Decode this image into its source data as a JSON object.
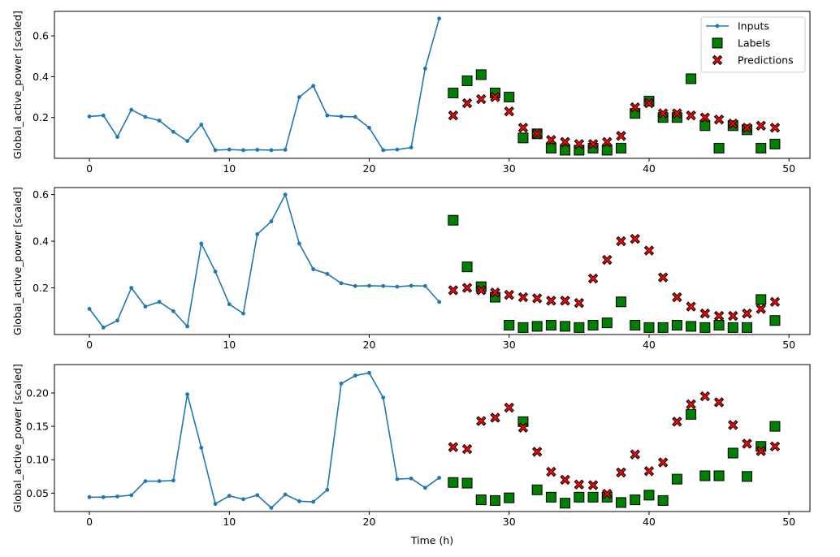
{
  "colors": {
    "inputs": "#1f77b4",
    "labels": "#008000",
    "predictions": "#ff0000",
    "edge": "#000000"
  },
  "legend": {
    "inputs": "Inputs",
    "labels": "Labels",
    "predictions": "Predictions"
  },
  "chart_data": [
    {
      "type": "line",
      "title": "",
      "xlabel": "",
      "ylabel": "Global_active_power [scaled]",
      "xlim": [
        -2.5,
        51.5
      ],
      "ylim": [
        0.0,
        0.72
      ],
      "xticks": [
        0,
        10,
        20,
        30,
        40,
        50
      ],
      "yticks": [
        0.2,
        0.4,
        0.6
      ],
      "ytick_labels": [
        "0.2",
        "0.4",
        "0.6"
      ],
      "legend": "top-right",
      "inputs": {
        "x": [
          0,
          1,
          2,
          3,
          4,
          5,
          6,
          7,
          8,
          9,
          10,
          11,
          12,
          13,
          14,
          15,
          16,
          17,
          18,
          19,
          20,
          21,
          22,
          23,
          24,
          25
        ],
        "y": [
          0.205,
          0.21,
          0.105,
          0.238,
          0.203,
          0.185,
          0.13,
          0.085,
          0.165,
          0.04,
          0.043,
          0.04,
          0.042,
          0.04,
          0.042,
          0.3,
          0.355,
          0.21,
          0.205,
          0.203,
          0.15,
          0.04,
          0.043,
          0.053,
          0.44,
          0.685
        ]
      },
      "labels": {
        "x": [
          26,
          27,
          28,
          29,
          30,
          31,
          32,
          33,
          34,
          35,
          36,
          37,
          38,
          39,
          40,
          41,
          42,
          43,
          44,
          45,
          46,
          47,
          48,
          49
        ],
        "y": [
          0.32,
          0.38,
          0.41,
          0.32,
          0.3,
          0.1,
          0.12,
          0.05,
          0.04,
          0.04,
          0.05,
          0.04,
          0.05,
          0.22,
          0.28,
          0.2,
          0.2,
          0.39,
          0.16,
          0.05,
          0.16,
          0.14,
          0.05,
          0.07
        ]
      },
      "predictions": {
        "x": [
          26,
          27,
          28,
          29,
          30,
          31,
          32,
          33,
          34,
          35,
          36,
          37,
          38,
          39,
          40,
          41,
          42,
          43,
          44,
          45,
          46,
          47,
          48,
          49
        ],
        "y": [
          0.21,
          0.27,
          0.29,
          0.3,
          0.23,
          0.15,
          0.12,
          0.09,
          0.08,
          0.07,
          0.07,
          0.08,
          0.11,
          0.25,
          0.27,
          0.22,
          0.22,
          0.21,
          0.2,
          0.19,
          0.17,
          0.15,
          0.16,
          0.15
        ]
      }
    },
    {
      "type": "line",
      "title": "",
      "xlabel": "",
      "ylabel": "Global_active_power [scaled]",
      "xlim": [
        -2.5,
        51.5
      ],
      "ylim": [
        0.0,
        0.63
      ],
      "xticks": [
        0,
        10,
        20,
        30,
        40,
        50
      ],
      "yticks": [
        0.2,
        0.4,
        0.6
      ],
      "ytick_labels": [
        "0.2",
        "0.4",
        "0.6"
      ],
      "inputs": {
        "x": [
          0,
          1,
          2,
          3,
          4,
          5,
          6,
          7,
          8,
          9,
          10,
          11,
          12,
          13,
          14,
          15,
          16,
          17,
          18,
          19,
          20,
          21,
          22,
          23,
          24,
          25
        ],
        "y": [
          0.11,
          0.03,
          0.06,
          0.2,
          0.12,
          0.14,
          0.1,
          0.035,
          0.39,
          0.27,
          0.13,
          0.09,
          0.43,
          0.485,
          0.6,
          0.39,
          0.28,
          0.26,
          0.22,
          0.208,
          0.209,
          0.208,
          0.205,
          0.209,
          0.208,
          0.14
        ]
      },
      "labels": {
        "x": [
          26,
          27,
          28,
          29,
          30,
          31,
          32,
          33,
          34,
          35,
          36,
          37,
          38,
          39,
          40,
          41,
          42,
          43,
          44,
          45,
          46,
          47,
          48,
          49
        ],
        "y": [
          0.49,
          0.29,
          0.205,
          0.16,
          0.04,
          0.03,
          0.035,
          0.04,
          0.035,
          0.03,
          0.04,
          0.05,
          0.14,
          0.04,
          0.03,
          0.03,
          0.04,
          0.035,
          0.03,
          0.04,
          0.03,
          0.03,
          0.15,
          0.06
        ]
      },
      "predictions": {
        "x": [
          26,
          27,
          28,
          29,
          30,
          31,
          32,
          33,
          34,
          35,
          36,
          37,
          38,
          39,
          40,
          41,
          42,
          43,
          44,
          45,
          46,
          47,
          48,
          49
        ],
        "y": [
          0.19,
          0.2,
          0.19,
          0.18,
          0.17,
          0.16,
          0.155,
          0.145,
          0.145,
          0.135,
          0.24,
          0.32,
          0.4,
          0.41,
          0.36,
          0.245,
          0.16,
          0.12,
          0.09,
          0.08,
          0.08,
          0.09,
          0.11,
          0.14
        ]
      }
    },
    {
      "type": "line",
      "title": "",
      "xlabel": "Time (h)",
      "ylabel": "Global_active_power [scaled]",
      "xlim": [
        -2.5,
        51.5
      ],
      "ylim": [
        0.0225,
        0.2425
      ],
      "xticks": [
        0,
        10,
        20,
        30,
        40,
        50
      ],
      "yticks": [
        0.05,
        0.1,
        0.15,
        0.2
      ],
      "ytick_labels": [
        "0.05",
        "0.10",
        "0.15",
        "0.20"
      ],
      "inputs": {
        "x": [
          0,
          1,
          2,
          3,
          4,
          5,
          6,
          7,
          8,
          9,
          10,
          11,
          12,
          13,
          14,
          15,
          16,
          17,
          18,
          19,
          20,
          21,
          22,
          23,
          24,
          25
        ],
        "y": [
          0.044,
          0.044,
          0.045,
          0.047,
          0.068,
          0.068,
          0.069,
          0.198,
          0.118,
          0.034,
          0.046,
          0.041,
          0.047,
          0.028,
          0.048,
          0.038,
          0.037,
          0.055,
          0.214,
          0.226,
          0.23,
          0.193,
          0.071,
          0.072,
          0.058,
          0.073
        ]
      },
      "labels": {
        "x": [
          26,
          27,
          28,
          29,
          30,
          31,
          32,
          33,
          34,
          35,
          36,
          37,
          38,
          39,
          40,
          41,
          42,
          43,
          44,
          45,
          46,
          47,
          48,
          49
        ],
        "y": [
          0.066,
          0.065,
          0.04,
          0.039,
          0.043,
          0.157,
          0.055,
          0.044,
          0.035,
          0.044,
          0.044,
          0.044,
          0.036,
          0.04,
          0.047,
          0.039,
          0.071,
          0.168,
          0.076,
          0.076,
          0.11,
          0.075,
          0.12,
          0.15
        ]
      },
      "predictions": {
        "x": [
          26,
          27,
          28,
          29,
          30,
          31,
          32,
          33,
          34,
          35,
          36,
          37,
          38,
          39,
          40,
          41,
          42,
          43,
          44,
          45,
          46,
          47,
          48,
          49
        ],
        "y": [
          0.119,
          0.116,
          0.158,
          0.163,
          0.178,
          0.148,
          0.112,
          0.082,
          0.07,
          0.063,
          0.062,
          0.049,
          0.081,
          0.108,
          0.083,
          0.096,
          0.157,
          0.183,
          0.195,
          0.186,
          0.152,
          0.124,
          0.113,
          0.12
        ]
      }
    }
  ]
}
